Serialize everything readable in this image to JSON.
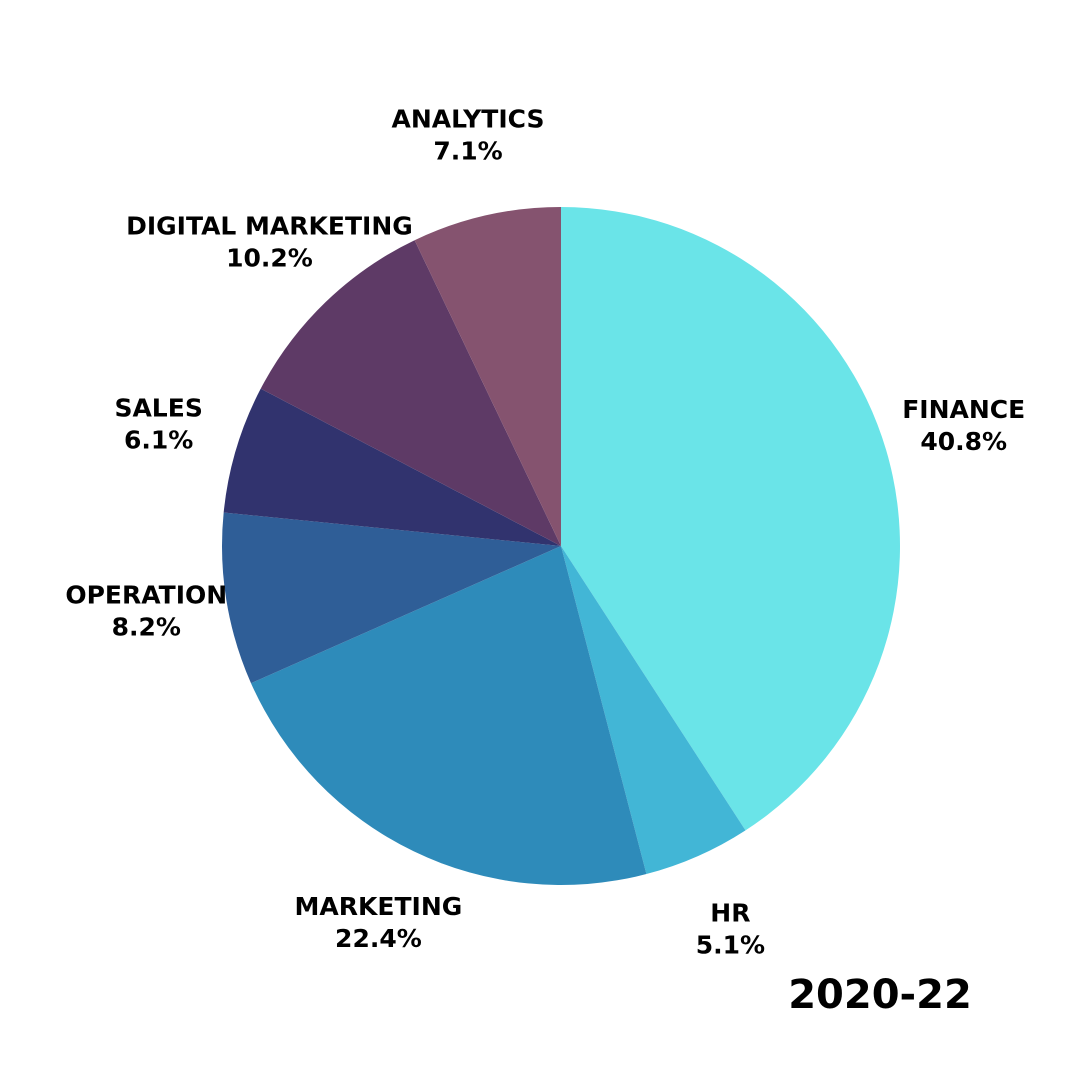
{
  "chart_data": {
    "type": "pie",
    "title": "2020-22",
    "categories": [
      "FINANCE",
      "HR",
      "MARKETING",
      "OPERATION",
      "SALES",
      "DIGITAL MARKETING",
      "ANALYTICS"
    ],
    "values": [
      40.8,
      5.1,
      22.4,
      8.2,
      6.1,
      10.2,
      7.1
    ],
    "value_labels": [
      "40.8%",
      "5.1%",
      "22.4%",
      "8.2%",
      "6.1%",
      "10.2%",
      "7.1%"
    ],
    "colors": [
      "#6ae4e8",
      "#42b6d6",
      "#2e8bba",
      "#2f5e97",
      "#31336e",
      "#5e3a66",
      "#85536f"
    ]
  }
}
